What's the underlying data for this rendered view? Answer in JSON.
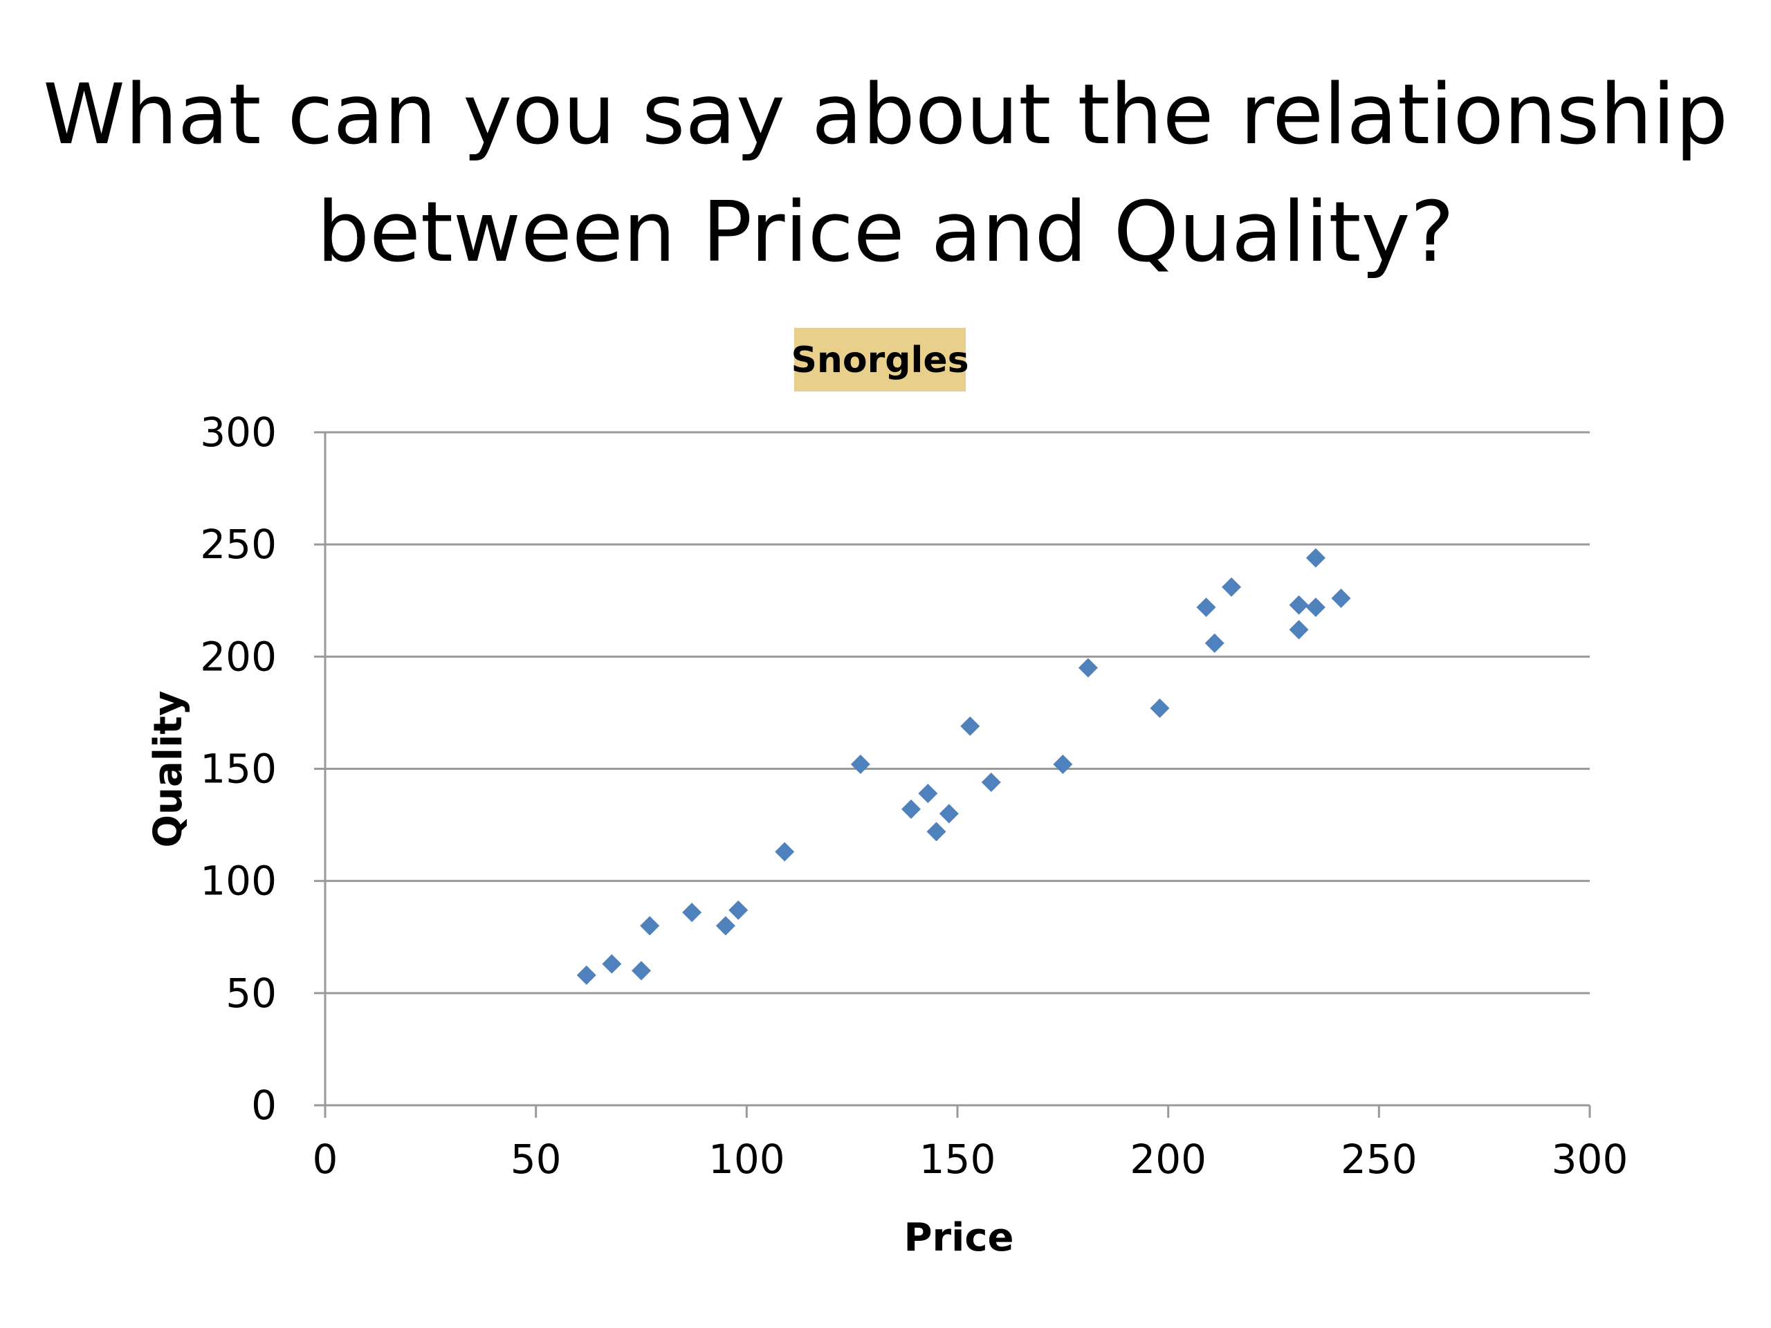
{
  "slide": {
    "title_line1": "What can you say about the relationship",
    "title_line2": "between Price and Quality?"
  },
  "chart_data": {
    "type": "scatter",
    "title": "Snorgles",
    "xlabel": "Price",
    "ylabel": "Quality",
    "xlim": [
      0,
      300
    ],
    "ylim": [
      0,
      300
    ],
    "xticks": [
      "0",
      "50",
      "100",
      "150",
      "200",
      "250",
      "300"
    ],
    "yticks": [
      "0",
      "50",
      "100",
      "150",
      "200",
      "250",
      "300"
    ],
    "grid": "horizontal",
    "legend": "none",
    "marker": "diamond",
    "colors": {
      "marker": "#4F81BD",
      "grid": "#999999",
      "title_bg": "#E8D08C"
    },
    "points": [
      {
        "x": 62,
        "y": 58
      },
      {
        "x": 68,
        "y": 63
      },
      {
        "x": 75,
        "y": 60
      },
      {
        "x": 77,
        "y": 80
      },
      {
        "x": 87,
        "y": 86
      },
      {
        "x": 95,
        "y": 80
      },
      {
        "x": 98,
        "y": 87
      },
      {
        "x": 109,
        "y": 113
      },
      {
        "x": 127,
        "y": 152
      },
      {
        "x": 139,
        "y": 132
      },
      {
        "x": 143,
        "y": 139
      },
      {
        "x": 145,
        "y": 122
      },
      {
        "x": 148,
        "y": 130
      },
      {
        "x": 153,
        "y": 169
      },
      {
        "x": 158,
        "y": 144
      },
      {
        "x": 175,
        "y": 152
      },
      {
        "x": 181,
        "y": 195
      },
      {
        "x": 198,
        "y": 177
      },
      {
        "x": 209,
        "y": 222
      },
      {
        "x": 211,
        "y": 206
      },
      {
        "x": 215,
        "y": 231
      },
      {
        "x": 231,
        "y": 223
      },
      {
        "x": 231,
        "y": 212
      },
      {
        "x": 235,
        "y": 244
      },
      {
        "x": 235,
        "y": 222
      },
      {
        "x": 241,
        "y": 226
      }
    ]
  }
}
